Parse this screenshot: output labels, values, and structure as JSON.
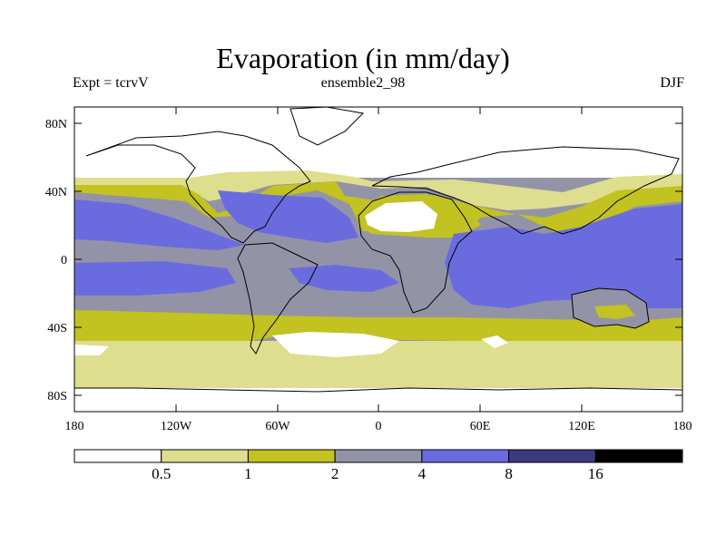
{
  "title": "Evaporation (in mm/day)",
  "subtitle_left": "Expt = tcrvV",
  "subtitle_center": "ensemble2_98",
  "subtitle_right": "DJF",
  "map": {
    "lat_ticks": [
      "80N",
      "40N",
      "0",
      "40S",
      "80S"
    ],
    "lon_ticks": [
      "180",
      "120W",
      "60W",
      "0",
      "60E",
      "120E",
      "180"
    ]
  },
  "colorbar": {
    "colors": [
      "#ffffff",
      "#dede8f",
      "#c2c220",
      "#9393a8",
      "#6b6be0",
      "#3b3b7e",
      "#000000"
    ],
    "labels": [
      "0.5",
      "1",
      "2",
      "4",
      "8",
      "16"
    ]
  }
}
